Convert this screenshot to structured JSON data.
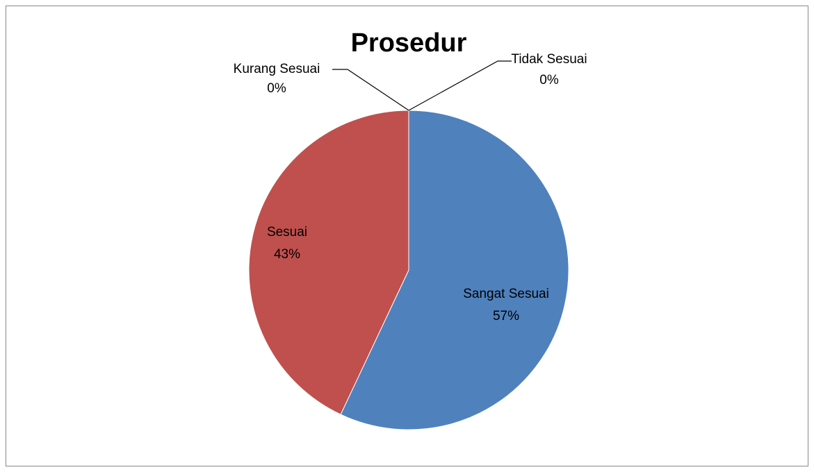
{
  "chart_data": {
    "type": "pie",
    "title": "Prosedur",
    "categories": [
      "Sangat Sesuai",
      "Sesuai",
      "Kurang Sesuai",
      "Tidak Sesuai"
    ],
    "values": [
      57,
      43,
      0,
      0
    ],
    "value_labels": [
      "57%",
      "43%",
      "0%",
      "0%"
    ],
    "colors": [
      "#4f81bd",
      "#c0504d",
      "#9bbb59",
      "#8064a2"
    ]
  }
}
